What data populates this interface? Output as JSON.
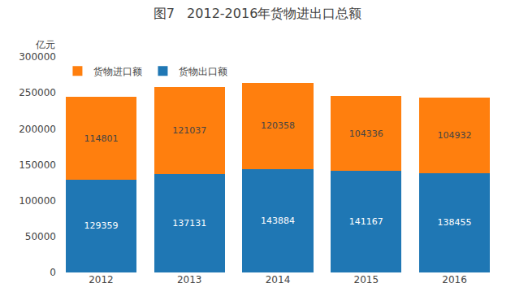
{
  "chart_data": {
    "type": "bar",
    "title": "图7   2012-2016年货物进出口总额",
    "y_label": "亿元",
    "categories": [
      "2012",
      "2013",
      "2014",
      "2015",
      "2016"
    ],
    "series": [
      {
        "name": "货物出口额",
        "values": [
          129359,
          137131,
          143884,
          141167,
          138455
        ]
      },
      {
        "name": "货物进口额",
        "values": [
          114801,
          121037,
          120358,
          104336,
          104932
        ]
      }
    ],
    "ylim": [
      0,
      300000
    ],
    "yticks": [
      0,
      50000,
      100000,
      150000,
      200000,
      250000,
      300000
    ],
    "stacked": true,
    "data_labels": true,
    "grid": false,
    "legend": "upper left"
  }
}
